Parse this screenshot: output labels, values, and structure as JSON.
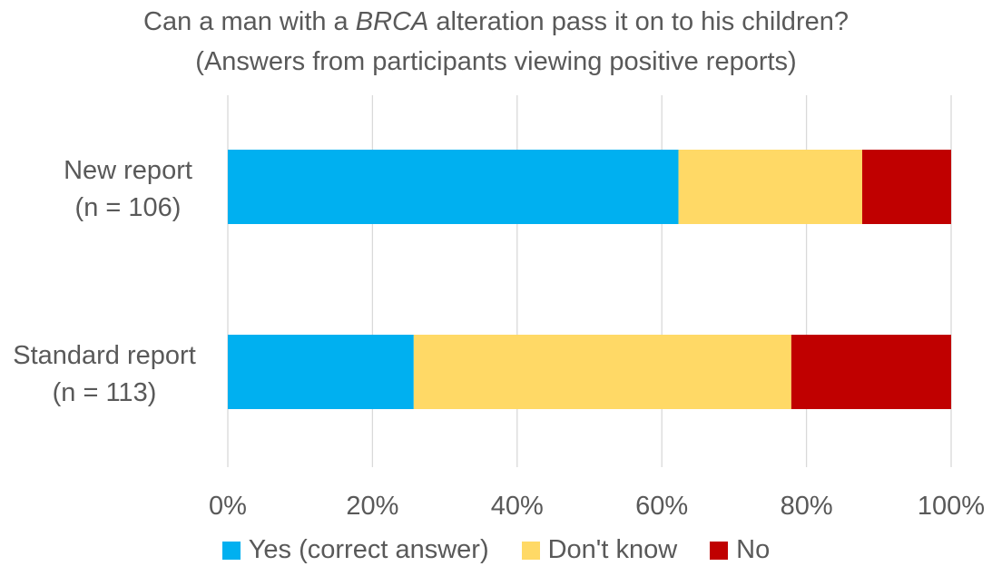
{
  "title": {
    "line1_prefix": "Can a man with a ",
    "line1_italic": "BRCA",
    "line1_suffix": " alteration pass it on to his children?",
    "line2": "(Answers from participants viewing positive reports)"
  },
  "chart_data": {
    "type": "bar",
    "orientation": "horizontal",
    "stacked": "percent",
    "categories": [
      {
        "line1": "New report",
        "line2": "(n = 106)"
      },
      {
        "line1": "Standard report",
        "line2": "(n = 113)"
      }
    ],
    "series": [
      {
        "name": "Yes (correct answer)",
        "color": "#00B0F0",
        "values": [
          62.3,
          25.7
        ]
      },
      {
        "name": "Don't know",
        "color": "#FFD966",
        "values": [
          25.4,
          52.2
        ]
      },
      {
        "name": "No",
        "color": "#C00000",
        "values": [
          12.3,
          22.1
        ]
      }
    ],
    "xlim": [
      0,
      100
    ],
    "xticks": [
      "0%",
      "20%",
      "40%",
      "60%",
      "80%",
      "100%"
    ],
    "grid": "vertical",
    "legend": "bottom",
    "gridline_color": "#D9D9D9"
  }
}
